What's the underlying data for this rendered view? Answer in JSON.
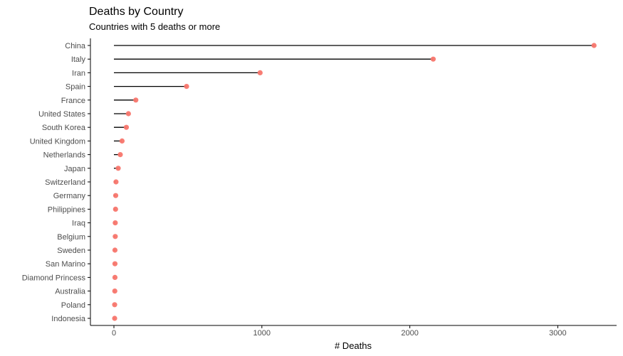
{
  "chart_data": {
    "type": "lollipop",
    "title": "Deaths by Country",
    "subtitle": "Countries with 5 deaths or more",
    "xlabel": "# Deaths",
    "ylabel": "",
    "xlim": [
      -150,
      3400
    ],
    "xticks": [
      0,
      1000,
      2000,
      3000
    ],
    "grid": false,
    "colors": {
      "point": "#F8766D",
      "segment": "#000000",
      "axis": "#000000"
    },
    "categories": [
      "China",
      "Italy",
      "Iran",
      "Spain",
      "France",
      "United States",
      "South Korea",
      "United Kingdom",
      "Netherlands",
      "Japan",
      "Switzerland",
      "Germany",
      "Philippines",
      "Iraq",
      "Belgium",
      "Sweden",
      "San Marino",
      "Diamond Princess",
      "Australia",
      "Poland",
      "Indonesia"
    ],
    "values": [
      3245,
      2158,
      988,
      491,
      148,
      98,
      84,
      55,
      43,
      29,
      14,
      12,
      11,
      9,
      9,
      7,
      7,
      7,
      6,
      5,
      5
    ]
  }
}
